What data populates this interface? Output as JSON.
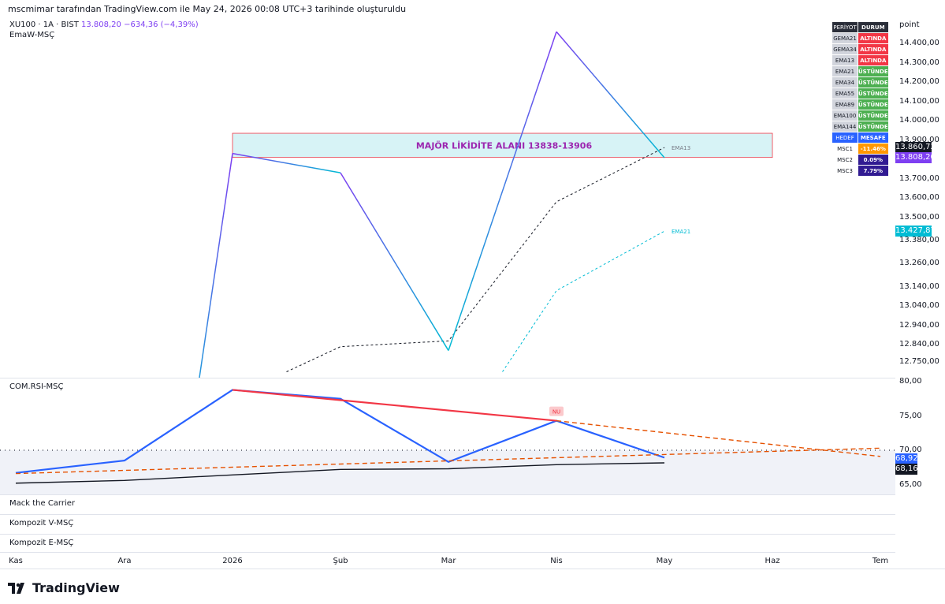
{
  "header": {
    "caption": "mscmimar tarafından TradingView.com ile May 24, 2026 00:08 UTC+3 tarihinde oluşturuldu"
  },
  "symbol": {
    "name": "XU100 · 1A · BIST",
    "price": "13.808,20",
    "change": "−634,36 (−4,39%)",
    "indicator": "EmaW-MSÇ"
  },
  "axis_unit": "point",
  "zone": {
    "label": "MAJÖR LİKİDİTE ALANI 13838-13906",
    "low": 13838,
    "high": 13906
  },
  "ema_labels": {
    "ema13": "EMA13",
    "ema21": "EMA21"
  },
  "table": {
    "header": [
      "PERİYOT",
      "DURUM"
    ],
    "rows": [
      {
        "key": "GEMA21",
        "val": "ALTINDA",
        "color": "#f23645"
      },
      {
        "key": "GEMA34",
        "val": "ALTINDA",
        "color": "#f23645"
      },
      {
        "key": "EMA13",
        "val": "ALTINDA",
        "color": "#f23645"
      },
      {
        "key": "EMA21",
        "val": "ÜSTÜNDE",
        "color": "#4caf50"
      },
      {
        "key": "EMA34",
        "val": "ÜSTÜNDE",
        "color": "#4caf50"
      },
      {
        "key": "EMA55",
        "val": "ÜSTÜNDE",
        "color": "#4caf50"
      },
      {
        "key": "EMA89",
        "val": "ÜSTÜNDE",
        "color": "#4caf50"
      },
      {
        "key": "EMA100",
        "val": "ÜSTÜNDE",
        "color": "#4caf50"
      },
      {
        "key": "EMA144",
        "val": "ÜSTÜNDE",
        "color": "#4caf50"
      }
    ],
    "header2": [
      "HEDEF",
      "MESAFE"
    ],
    "targets": [
      {
        "key": "MSC1",
        "val": "-11.46%",
        "color": "#ff9800"
      },
      {
        "key": "MSC2",
        "val": "0.09%",
        "color": "#311b92"
      },
      {
        "key": "MSC3",
        "val": "7.79%",
        "color": "#311b92"
      }
    ]
  },
  "price_tags": [
    {
      "text": "13.860,72",
      "color": "#131722",
      "value": 13860.72
    },
    {
      "text": "13.808,20",
      "color": "#7e3ff2",
      "value": 13808.2
    },
    {
      "text": "13.427,87",
      "color": "#00bcd4",
      "value": 13427.87
    }
  ],
  "rsi": {
    "title": "COM.RSI-MSÇ",
    "tags": [
      {
        "text": "68,92",
        "color": "#2962ff",
        "value": 68.92
      },
      {
        "text": "68,16",
        "color": "#131722",
        "value": 68.16
      }
    ],
    "nu": "NU"
  },
  "panes": [
    "Mack the Carrier",
    "Kompozit V-MSÇ",
    "Kompozit E-MSÇ"
  ],
  "time_axis": [
    "Kas",
    "Ara",
    "2026",
    "Şub",
    "Mar",
    "Nis",
    "May",
    "Haz",
    "Tem"
  ],
  "brand": "TradingView",
  "chart_data": [
    {
      "type": "line",
      "title": "XU100 · 1A · BIST",
      "x": [
        "2026-01",
        "2026-02",
        "2026-03",
        "2026-04",
        "2026-05"
      ],
      "ylim": [
        12700,
        14500
      ],
      "y_ticks": [
        "14.400,00",
        "14.300,00",
        "14.200,00",
        "14.100,00",
        "14.000,00",
        "13.900,00",
        "13.700,00",
        "13.600,00",
        "13.500,00",
        "13.380,00",
        "13.260,00",
        "13.140,00",
        "13.040,00",
        "12.940,00",
        "12.840,00",
        "12.750,00"
      ],
      "series": [
        {
          "name": "XU100",
          "values": [
            13830,
            13730,
            12810,
            14460,
            13808.2
          ],
          "color": "#7e3ff2",
          "lead_in": 12200
        },
        {
          "name": "EMA13",
          "x": [
            "2026-01-15",
            "2026-02",
            "2026-03",
            "2026-04",
            "2026-05"
          ],
          "values": [
            12700,
            12830,
            12860,
            13580,
            13860.72
          ],
          "color": "#131722",
          "dashed": true
        },
        {
          "name": "EMA21",
          "x": [
            "2026-03-15",
            "2026-04",
            "2026-05"
          ],
          "values": [
            12700,
            13120,
            13427.87
          ],
          "color": "#00bcd4",
          "dashed": true
        }
      ]
    },
    {
      "type": "line",
      "title": "COM.RSI-MSÇ",
      "x": [
        "2025-11",
        "2025-12",
        "2026-01",
        "2026-02",
        "2026-03",
        "2026-04",
        "2026-05"
      ],
      "ylim": [
        64,
        80
      ],
      "y_ticks": [
        "80,00",
        "75,00",
        "70,00",
        "65,00"
      ],
      "series": [
        {
          "name": "RSI",
          "values": [
            66.7,
            68.5,
            78.8,
            77.5,
            68.3,
            74.3,
            68.92
          ],
          "color": "#2962ff"
        },
        {
          "name": "Signal",
          "values": [
            65.2,
            65.6,
            66.4,
            67.2,
            67.3,
            67.9,
            68.16
          ],
          "color": "#131722"
        }
      ],
      "reference_level": 70,
      "trendlines": [
        {
          "name": "resistance",
          "from": [
            "2026-01",
            78.8
          ],
          "to": [
            "2026-04",
            74.3
          ],
          "color": "#f23645",
          "extend_to": [
            "2026-07",
            69.1
          ]
        },
        {
          "name": "support",
          "from": [
            "2025-11",
            66.6
          ],
          "to": [
            "2026-07",
            70.3
          ],
          "color": "#e65100",
          "dashed": true
        }
      ]
    }
  ]
}
